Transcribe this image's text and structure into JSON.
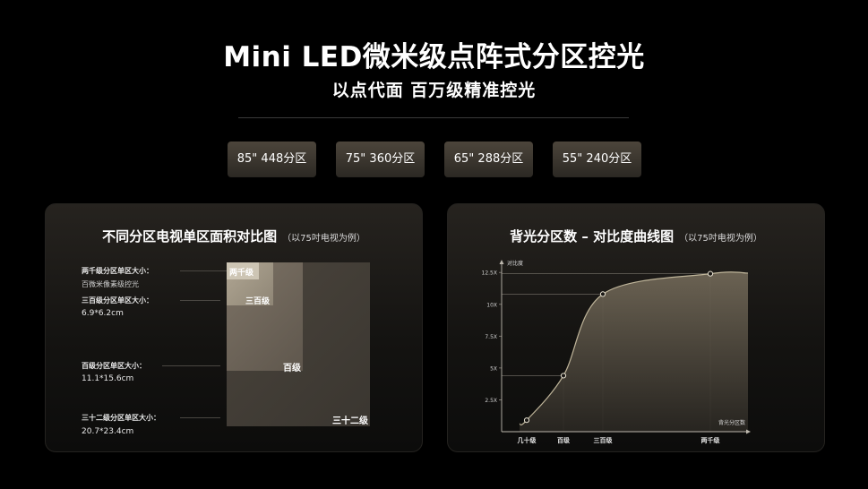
{
  "title": "Mini LED微米级点阵式分区控光",
  "subtitle": "以点代面 百万级精准控光",
  "chips": [
    "85\" 448分区",
    "75\" 360分区",
    "65\" 288分区",
    "55\" 240分区"
  ],
  "left_panel": {
    "title": "不同分区电视单区面积对比图",
    "note": "（以75吋电视为例）",
    "labels": {
      "l1a": "两千级分区单区大小：",
      "l1b": "百微米像素级控光",
      "l2a": "三百级分区单区大小：",
      "l2b": "6.9*6.2cm",
      "l3a": "百级分区单区大小：",
      "l3b": "11.1*15.6cm",
      "l4a": "三十二级分区单区大小：",
      "l4b": "20.7*23.4cm"
    },
    "squares": {
      "s1": "两千级",
      "s2": "三百级",
      "s3": "百级",
      "s4": "三十二级"
    }
  },
  "right_panel": {
    "title": "背光分区数 – 对比度曲线图",
    "note": "（以75吋电视为例）",
    "chart_data": {
      "type": "line",
      "ylabel": "对比度",
      "xlabel": "背光分区数",
      "y_ticks": [
        "2.5X",
        "5X",
        "7.5X",
        "10X",
        "12.5X"
      ],
      "x_ticks": [
        "几十级",
        "百级",
        "三百级",
        "两千级"
      ],
      "points": [
        {
          "x": "几十级",
          "y": 0.9
        },
        {
          "x": "百级",
          "y": 4.4
        },
        {
          "x": "三百级",
          "y": 10.8
        },
        {
          "x": "两千级",
          "y": 12.4
        }
      ],
      "ylim": [
        0,
        13.5
      ],
      "colors": {
        "curve": "#bfb59a",
        "fill": "#6f6656",
        "point": "#e8e2d2"
      }
    }
  }
}
